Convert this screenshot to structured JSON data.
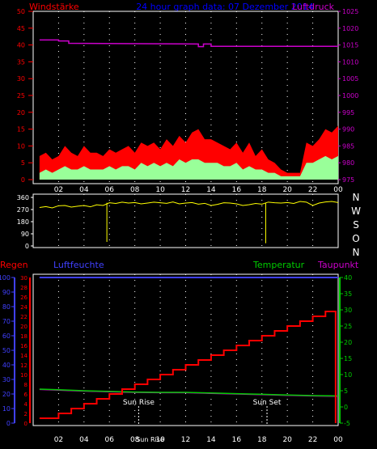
{
  "header": {
    "left_label": "Windstärke",
    "center_title": "24 hour graph data: 07 Dezember 2014",
    "right_label": "Luftdruck"
  },
  "direction_labels": [
    "N",
    "W",
    "S",
    "O",
    "N"
  ],
  "bottom_header": {
    "rain": "Regen",
    "humidity": "Luftfeuchte",
    "temperature": "Temperatur",
    "dewpoint": "Taupunkt"
  },
  "annotations": {
    "sunrise": "Sun Rise",
    "sunset": "Sun Set"
  },
  "colors": {
    "wind_gust": "#ff0000",
    "wind_avg": "#99ff99",
    "wind_inner": "#ffffff",
    "pressure": "#cc00cc",
    "direction": "#ffff00",
    "rain": "#ff0000",
    "humidity": "#4040ff",
    "temperature": "#00cc00",
    "dewpoint": "#cc00cc",
    "grid": "#ffffff"
  },
  "chart_data": [
    {
      "type": "area",
      "name": "wind_and_pressure",
      "x_ticks": [
        "02",
        "04",
        "06",
        "08",
        "10",
        "12",
        "14",
        "16",
        "18",
        "20",
        "22",
        "00"
      ],
      "left_axis": {
        "ticks": [
          0,
          5,
          10,
          15,
          20,
          25,
          30,
          35,
          40,
          45,
          50
        ],
        "ylim": [
          0,
          50
        ]
      },
      "right_axis": {
        "ticks": [
          975,
          980,
          985,
          990,
          995,
          1000,
          1005,
          1010,
          1015,
          1020,
          1025
        ],
        "ylim": [
          975,
          1025
        ]
      },
      "grid": "dotted-vertical",
      "pressure": {
        "x": [
          0.5,
          2.0,
          2.0,
          2.8,
          2.8,
          13.0,
          13.0,
          13.4,
          13.4,
          14.0,
          14.0,
          24.0
        ],
        "y": [
          1016.5,
          1016.5,
          1016.2,
          1016.2,
          1015.5,
          1015.3,
          1014.5,
          1014.5,
          1015.3,
          1015.3,
          1014.6,
          1014.6
        ]
      },
      "wind_gust_envelope": {
        "x": [
          0.5,
          1.0,
          1.5,
          2.0,
          2.5,
          3.0,
          3.5,
          4.0,
          4.5,
          5.0,
          5.5,
          6.0,
          6.5,
          7.0,
          7.5,
          8.0,
          8.5,
          9.0,
          9.5,
          10.0,
          10.5,
          11.0,
          11.5,
          12.0,
          12.5,
          13.0,
          13.5,
          14.0,
          14.5,
          15.0,
          15.5,
          16.0,
          16.5,
          17.0,
          17.5,
          18.0,
          18.5,
          19.0,
          19.5,
          20.0,
          20.5,
          21.0,
          21.5,
          22.0,
          22.5,
          23.0,
          23.5,
          24.0
        ],
        "y": [
          7,
          8,
          6,
          7,
          10,
          8,
          7,
          10,
          8,
          8,
          7,
          9,
          8,
          9,
          10,
          8,
          11,
          10,
          11,
          9,
          12,
          10,
          13,
          11,
          14,
          15,
          12,
          12,
          11,
          10,
          9,
          11,
          8,
          11,
          7,
          9,
          6,
          5,
          3,
          2,
          2,
          2,
          11,
          10,
          12,
          15,
          14,
          16
        ]
      },
      "wind_average": {
        "x": [
          0.5,
          1.0,
          1.5,
          2.0,
          2.5,
          3.0,
          3.5,
          4.0,
          4.5,
          5.0,
          5.5,
          6.0,
          6.5,
          7.0,
          7.5,
          8.0,
          8.5,
          9.0,
          9.5,
          10.0,
          10.5,
          11.0,
          11.5,
          12.0,
          12.5,
          13.0,
          13.5,
          14.0,
          14.5,
          15.0,
          15.5,
          16.0,
          16.5,
          17.0,
          17.5,
          18.0,
          18.5,
          19.0,
          19.5,
          20.0,
          20.5,
          21.0,
          21.5,
          22.0,
          22.5,
          23.0,
          23.5,
          24.0
        ],
        "y": [
          2,
          3,
          2,
          3,
          4,
          3,
          3,
          4,
          3,
          3,
          3,
          4,
          3,
          4,
          4,
          3,
          5,
          4,
          5,
          4,
          5,
          4,
          6,
          5,
          6,
          6,
          5,
          5,
          5,
          4,
          4,
          5,
          3,
          4,
          3,
          3,
          2,
          2,
          1,
          1,
          1,
          1,
          5,
          5,
          6,
          7,
          6,
          7
        ]
      }
    },
    {
      "type": "line",
      "name": "wind_direction",
      "x_ticks": [],
      "y_ticks": [
        0,
        90,
        180,
        270,
        360
      ],
      "ylim": [
        0,
        360
      ],
      "series": [
        {
          "values_x": [
            0.5,
            1.0,
            1.5,
            2.0,
            2.5,
            3.0,
            3.5,
            4.0,
            4.5,
            5.0,
            5.5,
            6.0,
            6.5,
            7.0,
            7.5,
            8.0,
            8.5,
            9.0,
            9.5,
            10.0,
            10.5,
            11.0,
            11.5,
            12.0,
            12.5,
            13.0,
            13.5,
            14.0,
            14.5,
            15.0,
            15.5,
            16.0,
            16.5,
            17.0,
            17.5,
            18.0,
            18.5,
            19.0,
            19.5,
            20.0,
            20.5,
            21.0,
            21.5,
            22.0,
            22.5,
            23.0,
            23.5,
            24.0
          ],
          "values_y": [
            285,
            292,
            282,
            298,
            300,
            288,
            295,
            300,
            290,
            305,
            300,
            320,
            315,
            325,
            318,
            322,
            312,
            318,
            325,
            320,
            316,
            326,
            312,
            318,
            322,
            310,
            316,
            300,
            308,
            320,
            318,
            312,
            300,
            306,
            315,
            310,
            325,
            320,
            318,
            322,
            315,
            330,
            325,
            300,
            318,
            326,
            330,
            322
          ]
        }
      ],
      "spikes": [
        {
          "x": 5.8,
          "y": 30
        },
        {
          "x": 18.3,
          "y": 20
        }
      ]
    },
    {
      "type": "line",
      "name": "rain_humidity_temperature",
      "x_ticks": [
        "02",
        "04",
        "06",
        "08",
        "Sun Rise",
        "10",
        "12",
        "14",
        "16",
        "18",
        "20",
        "22",
        "00"
      ],
      "humidity_axis": {
        "ticks": [
          0,
          10,
          20,
          30,
          40,
          50,
          60,
          70,
          80,
          90,
          100
        ],
        "ylim": [
          0,
          100
        ]
      },
      "rain_axis": {
        "ticks": [
          0,
          2,
          4,
          6,
          8,
          10,
          12,
          14,
          16,
          18,
          20,
          22,
          24,
          26,
          28,
          30
        ],
        "ylim": [
          0,
          30
        ]
      },
      "temperature_axis": {
        "ticks": [
          -5,
          0,
          5,
          10,
          15,
          20,
          25,
          30,
          35,
          40
        ],
        "ylim": [
          -5,
          40
        ]
      },
      "grid": "dotted-vertical",
      "rain": {
        "x": [
          0.5,
          2.0,
          3.0,
          4.0,
          5.0,
          6.0,
          7.0,
          8.0,
          9.0,
          10.0,
          11.0,
          12.0,
          13.0,
          14.0,
          15.0,
          16.0,
          17.0,
          18.0,
          19.0,
          20.0,
          21.0,
          22.0,
          23.0,
          23.8,
          23.8
        ],
        "y": [
          1,
          2,
          3,
          4,
          5,
          6,
          7,
          8,
          9,
          10,
          11,
          12,
          13,
          14,
          15,
          16,
          17,
          18,
          19,
          20,
          21,
          22,
          23,
          23,
          0
        ]
      },
      "humidity": {
        "x": [
          0.5,
          2,
          4,
          6,
          8,
          10,
          12,
          14,
          16,
          18,
          20,
          22,
          24
        ],
        "y": [
          100,
          100,
          100,
          100,
          100,
          100,
          100,
          100,
          100,
          100,
          100,
          100,
          100
        ]
      },
      "temperature": {
        "x": [
          0.5,
          2,
          4,
          6,
          8,
          10,
          12,
          14,
          16,
          18,
          20,
          22,
          24
        ],
        "y": [
          5.5,
          5.3,
          5.0,
          4.8,
          4.6,
          4.5,
          4.5,
          4.3,
          4.1,
          3.9,
          3.7,
          3.5,
          3.4
        ]
      },
      "dewpoint": {
        "x": [
          0.5,
          2,
          4,
          6,
          8,
          10,
          12,
          14,
          16,
          18,
          20,
          22,
          24
        ],
        "y": [
          5.4,
          5.2,
          4.9,
          4.7,
          4.5,
          4.4,
          4.4,
          4.2,
          4.0,
          3.8,
          3.6,
          3.4,
          3.3
        ]
      },
      "sunrise_x": 8.3,
      "sunset_x": 18.4
    }
  ]
}
